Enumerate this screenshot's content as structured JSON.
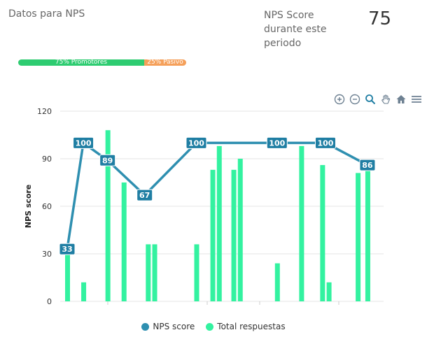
{
  "header": {
    "title": "Datos para NPS",
    "nps_label": "NPS Score\ndurante este\nperiodo",
    "nps_value": "75"
  },
  "progress": {
    "promotores": {
      "percent": 75,
      "label": "75% Promotores",
      "color": "#2ecc71"
    },
    "pasivos": {
      "percent": 25,
      "label": "25% Pasivo",
      "color": "#f5a05a"
    }
  },
  "toolbar": {
    "icons": [
      "zoom-in-icon",
      "zoom-out-icon",
      "zoom-select-icon",
      "pan-hand-icon",
      "home-icon",
      "menu-icon"
    ]
  },
  "chart_data": {
    "type": "bar",
    "ylabel": "NPS score",
    "ylim": [
      0,
      120
    ],
    "yticks": [
      0,
      30,
      60,
      90,
      120
    ],
    "colors": {
      "line": "#2e8fb0",
      "bar": "#33f2a0",
      "label_bg": "#1f7ea3"
    },
    "series": [
      {
        "name": "Total respuestas",
        "type": "bar",
        "points": [
          {
            "x": 0,
            "y": 31
          },
          {
            "x": 1,
            "y": 12
          },
          {
            "x": 2.5,
            "y": 108
          },
          {
            "x": 3.5,
            "y": 75
          },
          {
            "x": 5,
            "y": 36
          },
          {
            "x": 5.4,
            "y": 36
          },
          {
            "x": 8,
            "y": 36
          },
          {
            "x": 9,
            "y": 83
          },
          {
            "x": 9.4,
            "y": 98
          },
          {
            "x": 10.3,
            "y": 83
          },
          {
            "x": 10.7,
            "y": 90
          },
          {
            "x": 13,
            "y": 24
          },
          {
            "x": 14.5,
            "y": 98
          },
          {
            "x": 15.8,
            "y": 86
          },
          {
            "x": 16.2,
            "y": 12
          },
          {
            "x": 18,
            "y": 81
          },
          {
            "x": 18.6,
            "y": 84
          }
        ]
      },
      {
        "name": "NPS score",
        "type": "line",
        "points": [
          {
            "x": 0,
            "y": 33
          },
          {
            "x": 1,
            "y": 100
          },
          {
            "x": 2.5,
            "y": 89
          },
          {
            "x": 4.8,
            "y": 67
          },
          {
            "x": 8,
            "y": 100
          },
          {
            "x": 13,
            "y": 100
          },
          {
            "x": 16,
            "y": 100
          },
          {
            "x": 18.6,
            "y": 86
          }
        ]
      }
    ],
    "legend": [
      "NPS score",
      "Total respuestas"
    ]
  }
}
